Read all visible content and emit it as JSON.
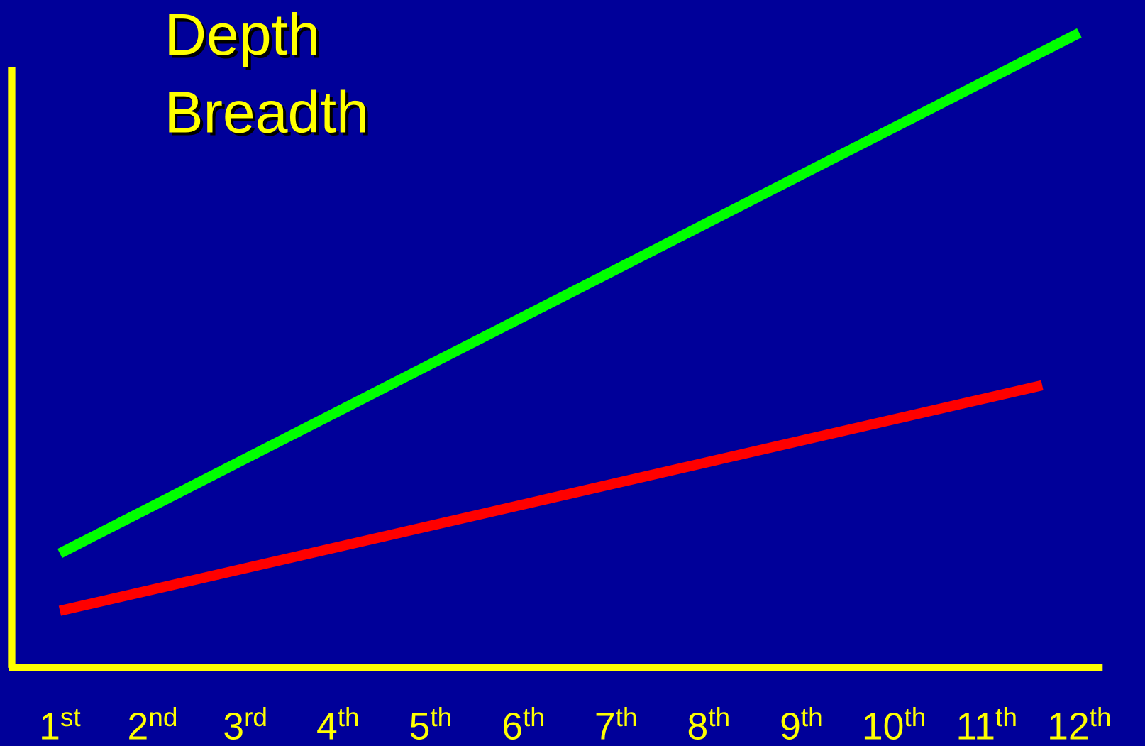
{
  "chart_data": {
    "type": "line",
    "xlim": [
      1,
      12
    ],
    "ylim": [
      0,
      106
    ],
    "xticks": [
      {
        "value": 1,
        "label": "1st"
      },
      {
        "value": 2,
        "label": "2nd"
      },
      {
        "value": 3,
        "label": "3rd"
      },
      {
        "value": 4,
        "label": "4th"
      },
      {
        "value": 5,
        "label": "5th"
      },
      {
        "value": 6,
        "label": "6th"
      },
      {
        "value": 7,
        "label": "7th"
      },
      {
        "value": 8,
        "label": "8th"
      },
      {
        "value": 9,
        "label": "9th"
      },
      {
        "value": 10,
        "label": "10th"
      },
      {
        "value": 11,
        "label": "11th"
      },
      {
        "value": 12,
        "label": "12th"
      }
    ],
    "series": [
      {
        "name": "Depth",
        "color": "#00ff00",
        "x": [
          1,
          12
        ],
        "values": [
          19,
          106
        ]
      },
      {
        "name": "Breadth",
        "color": "#ff0000",
        "x": [
          1,
          11.6
        ],
        "values": [
          9.4,
          47.1
        ]
      }
    ]
  }
}
